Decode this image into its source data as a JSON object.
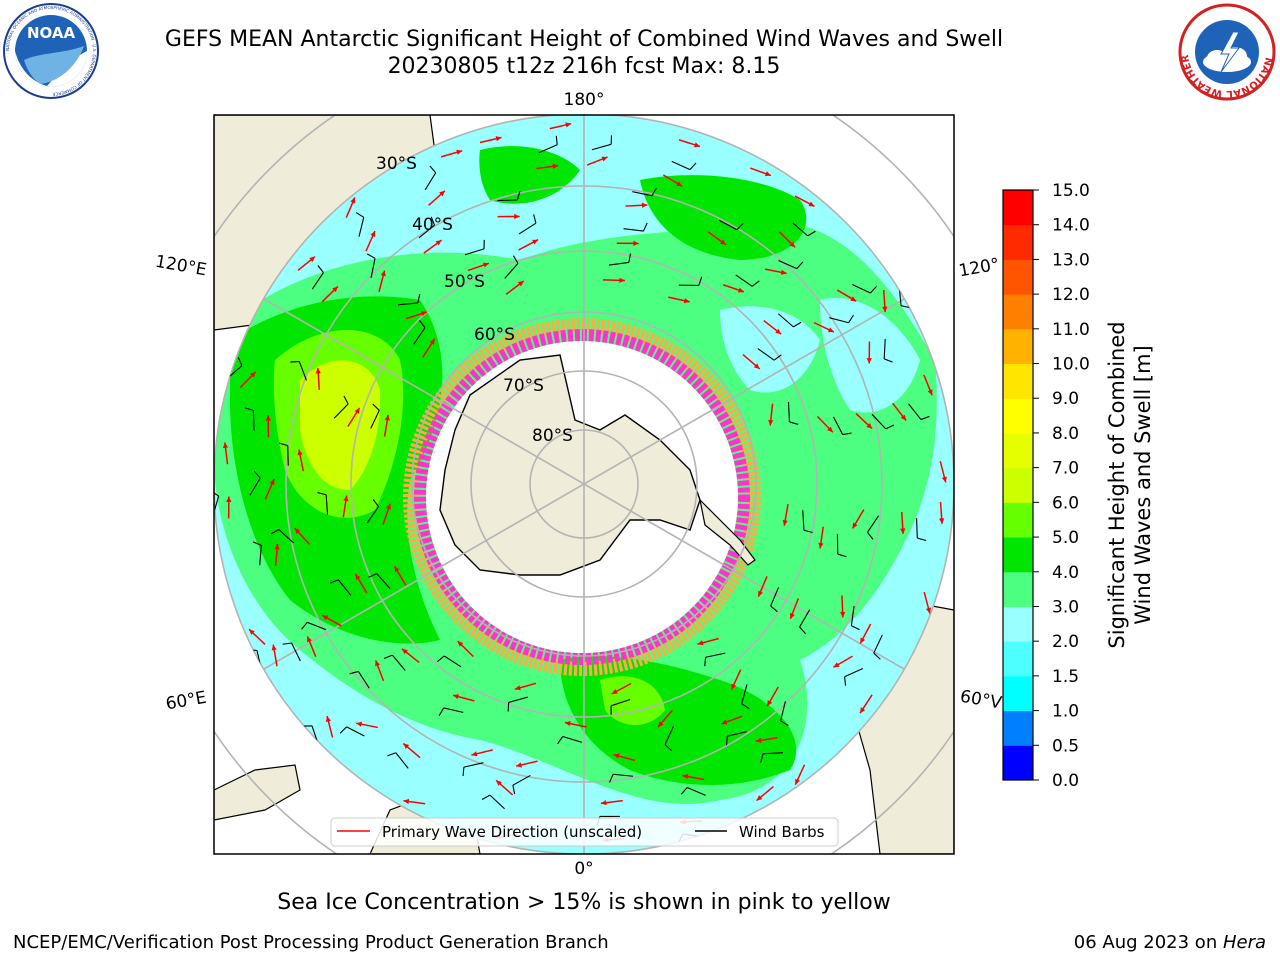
{
  "header": {
    "title_line1": "GEFS MEAN Antarctic Significant Height of Combined Wind Waves and Swell",
    "title_line2": "20230805 t12z 216h fcst   Max: 8.15"
  },
  "logos": {
    "left": {
      "text": "NOAA",
      "ring_text": "NATIONAL OCEANIC AND ATMOSPHERIC ADMINISTRATION · U.S. DEPARTMENT OF COMMERCE"
    },
    "right": {
      "ring_text": "NATIONAL WEATHER SERVICE"
    }
  },
  "map": {
    "projection": "south-polar-stereographic",
    "lon_labels": {
      "top": "180°",
      "bottom": "0°",
      "upper_left": "120°E",
      "lower_left": "60°E",
      "upper_right": "120°",
      "lower_right": "60°V"
    },
    "lat_labels": [
      "30°S",
      "40°S",
      "50°S",
      "60°S",
      "70°S",
      "80°S"
    ],
    "colors": {
      "ocean_low": "#99ffff",
      "ocean_mid": "#4dff80",
      "ocean_high": "#00e600",
      "land": "#efedd9",
      "ice_pink": "#ff33cc",
      "ice_orange": "#ffaa44",
      "arrow": "#ff0000",
      "barb": "#000000",
      "grid": "#b3b3b3"
    }
  },
  "legend": {
    "primary": "Primary Wave Direction (unscaled)",
    "barbs": "Wind Barbs"
  },
  "colorbar": {
    "label_line1": "Significant Height of Combined",
    "label_line2": "Wind Waves and Swell [m]",
    "ticks": [
      "0.0",
      "0.5",
      "1.0",
      "1.5",
      "2.0",
      "3.0",
      "4.0",
      "5.0",
      "6.0",
      "7.0",
      "8.0",
      "9.0",
      "10.0",
      "11.0",
      "12.0",
      "13.0",
      "14.0",
      "15.0"
    ],
    "colors": [
      "#0000ff",
      "#0080ff",
      "#00ffff",
      "#4dffff",
      "#99ffff",
      "#4dff80",
      "#00e600",
      "#66ff00",
      "#ccff00",
      "#e6ff00",
      "#ffff00",
      "#ffe600",
      "#ffb300",
      "#ff8000",
      "#ff5500",
      "#ff2a00",
      "#ff0000"
    ]
  },
  "caption": "Sea Ice Concentration > 15% is shown in pink to yellow",
  "footer": {
    "left": "NCEP/EMC/Verification Post Processing Product Generation Branch",
    "right_date": "06 Aug 2023 on ",
    "right_machine": "Hera"
  }
}
